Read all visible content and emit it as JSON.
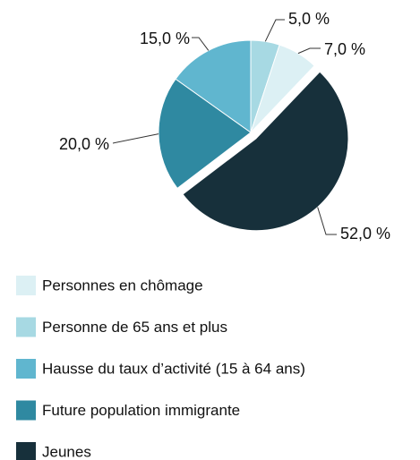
{
  "chart_data": {
    "type": "pie",
    "categories": [
      "Personnes en chômage",
      "Personne de 65 ans et plus",
      "Hausse du taux d’activité (15 à 64 ans)",
      "Future population immigrante",
      "Jeunes"
    ],
    "values": [
      7,
      5,
      15,
      20,
      52
    ],
    "value_labels": [
      "7,0 %",
      "5,0 %",
      "15,0 %",
      "20,0 %",
      "52,0 %"
    ],
    "colors": [
      "#dcf0f4",
      "#a7d9e3",
      "#60b6cf",
      "#2f89a1",
      "#17303b"
    ]
  }
}
